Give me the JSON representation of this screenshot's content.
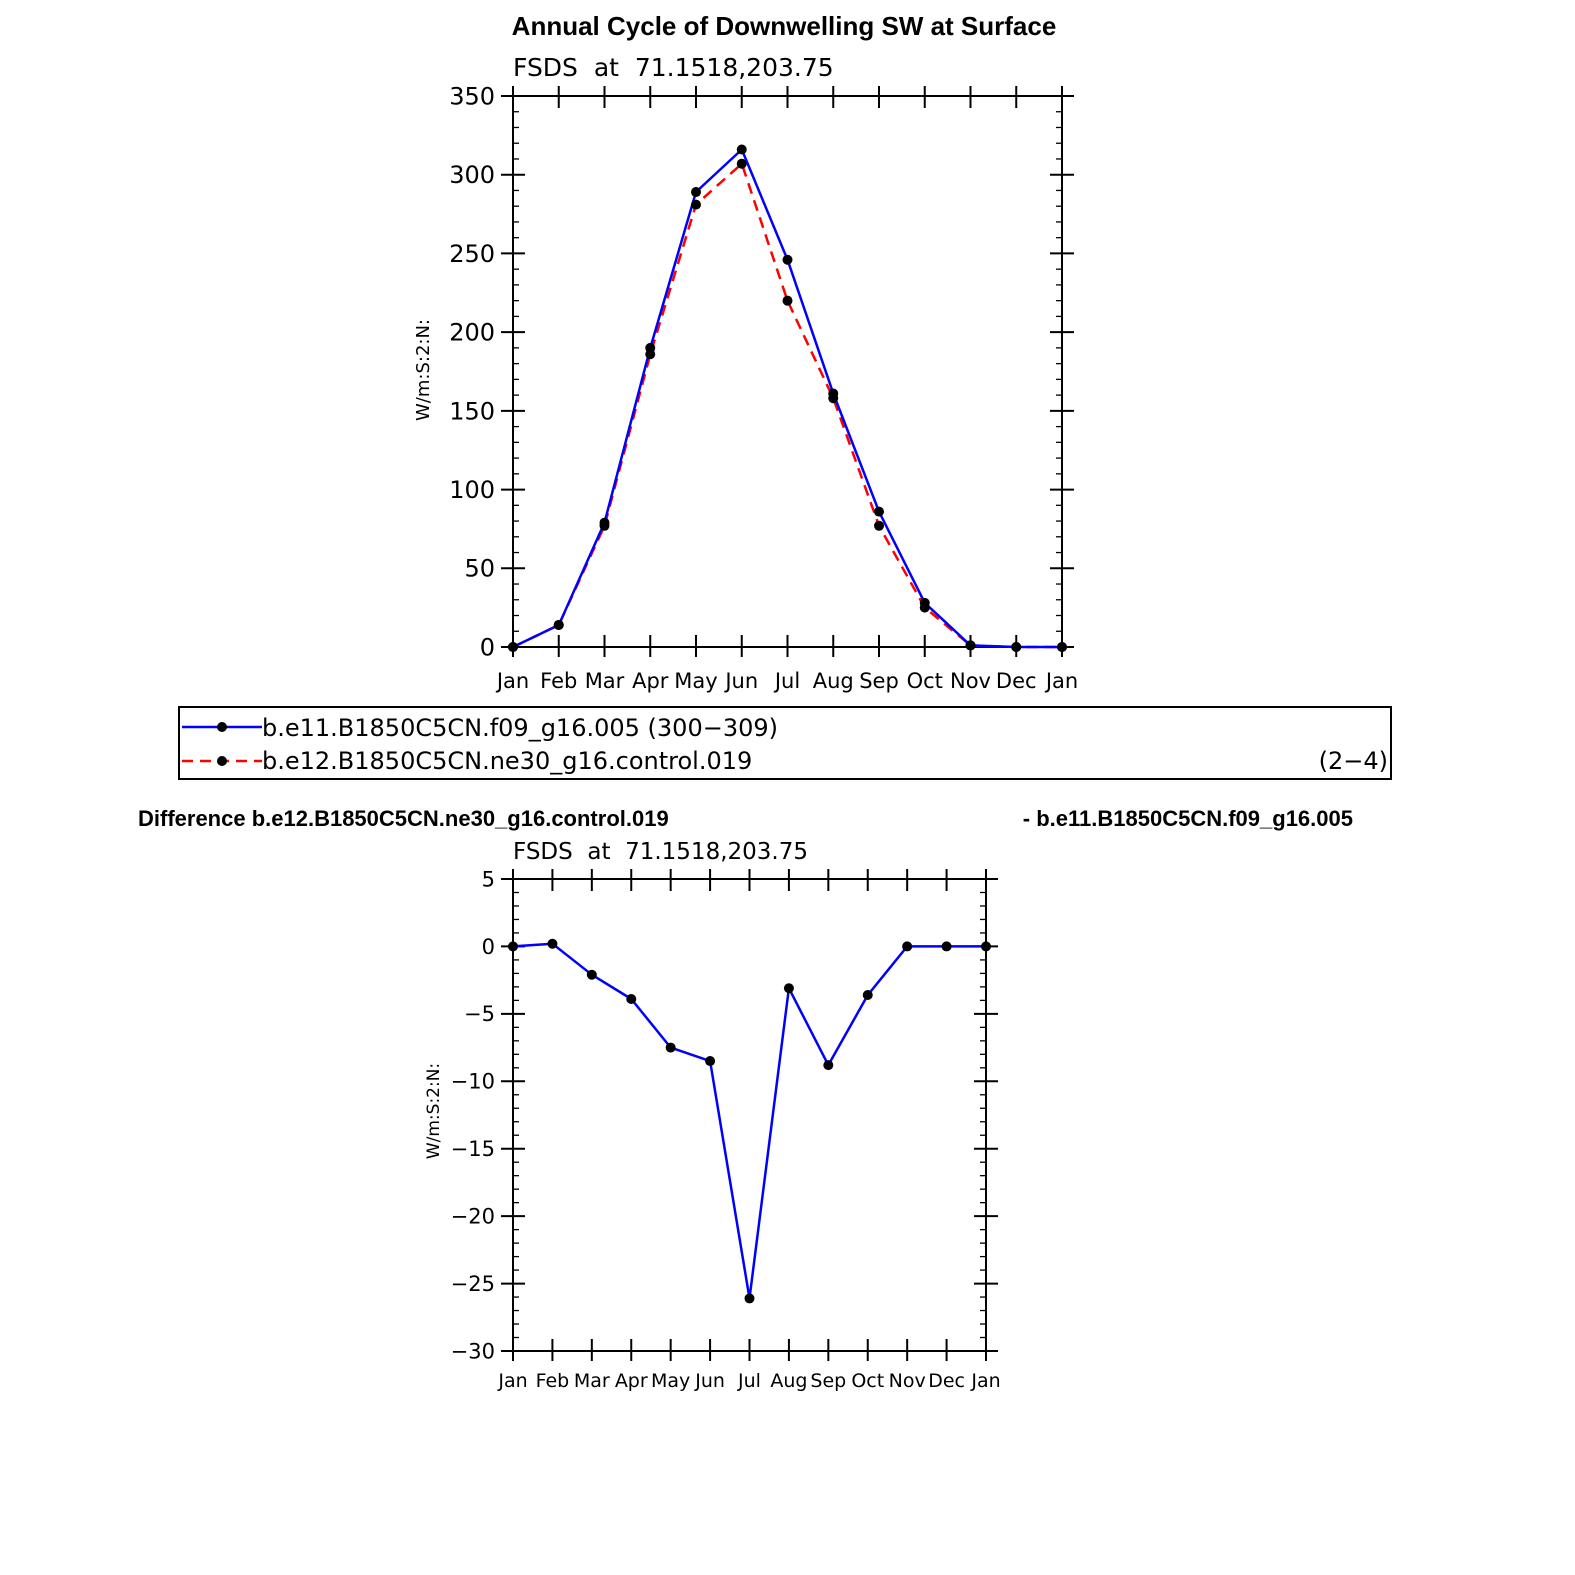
{
  "main_title": "Annual Cycle of Downwelling SW at Surface",
  "diff_title_left": "Difference b.e12.B1850C5CN.ne30_g16.control.019",
  "diff_title_right": "- b.e11.B1850C5CN.f09_g16.005",
  "legend": {
    "entries": [
      {
        "label": "b.e11.B1850C5CN.f09_g16.005 (300−309)"
      },
      {
        "label": "b.e12.B1850C5CN.ne30_g16.control.019"
      }
    ],
    "right_note": "(2−4)"
  },
  "colors": {
    "series1": "#0000ff",
    "series2": "#ff0000",
    "marker": "#000000"
  },
  "chart_data": [
    {
      "type": "line",
      "title": "FSDS  at  71.1518,203.75",
      "ylabel": "W/m:S:2:N:",
      "xlabel": "",
      "categories": [
        "Jan",
        "Feb",
        "Mar",
        "Apr",
        "May",
        "Jun",
        "Jul",
        "Aug",
        "Sep",
        "Oct",
        "Nov",
        "Dec",
        "Jan"
      ],
      "ylim": [
        0,
        350
      ],
      "yticks": [
        0,
        50,
        100,
        150,
        200,
        250,
        300,
        350
      ],
      "grid": false,
      "legend_position": "below",
      "series": [
        {
          "name": "b.e11.B1850C5CN.f09_g16.005",
          "color": "#0000ff",
          "style": "solid",
          "values": [
            0,
            14,
            79,
            190,
            289,
            316,
            246,
            161,
            86,
            28,
            1,
            0,
            0
          ]
        },
        {
          "name": "b.e12.B1850C5CN.ne30_g16.control.019",
          "color": "#ff0000",
          "style": "dashed",
          "values": [
            0,
            14,
            77,
            186,
            281,
            307,
            220,
            158,
            77,
            25,
            1,
            0,
            0
          ]
        }
      ]
    },
    {
      "type": "line",
      "title": "FSDS  at  71.1518,203.75",
      "ylabel": "W/m:S:2:N:",
      "xlabel": "",
      "categories": [
        "Jan",
        "Feb",
        "Mar",
        "Apr",
        "May",
        "Jun",
        "Jul",
        "Aug",
        "Sep",
        "Oct",
        "Nov",
        "Dec",
        "Jan"
      ],
      "ylim": [
        -30,
        5
      ],
      "yticks": [
        -30,
        -25,
        -20,
        -15,
        -10,
        -5,
        0,
        5
      ],
      "grid": false,
      "series": [
        {
          "color": "#0000ff",
          "style": "solid",
          "values": [
            0,
            0.2,
            -2.1,
            -3.9,
            -7.5,
            -8.5,
            -26.1,
            -3.1,
            -8.8,
            -3.6,
            0,
            0,
            0
          ]
        }
      ]
    }
  ]
}
